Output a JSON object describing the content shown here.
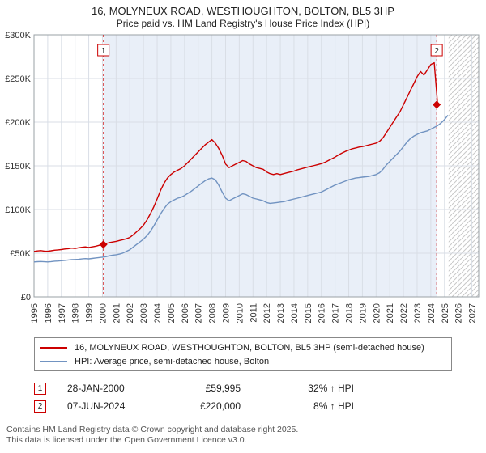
{
  "page": {
    "title": "16, MOLYNEUX ROAD, WESTHOUGHTON, BOLTON, BL5 3HP",
    "subtitle": "Price paid vs. HM Land Registry's House Price Index (HPI)"
  },
  "chart_data": {
    "type": "line",
    "title": "16, MOLYNEUX ROAD, WESTHOUGHTON, BOLTON, BL5 3HP",
    "subtitle": "Price paid vs. HM Land Registry's House Price Index (HPI)",
    "x_axis": {
      "min": 1995,
      "max": 2027.5,
      "tick_years": [
        1995,
        1996,
        1997,
        1998,
        1999,
        2000,
        2001,
        2002,
        2003,
        2004,
        2005,
        2006,
        2007,
        2008,
        2009,
        2010,
        2011,
        2012,
        2013,
        2014,
        2015,
        2016,
        2017,
        2018,
        2019,
        2020,
        2021,
        2022,
        2023,
        2024,
        2025,
        2026,
        2027
      ]
    },
    "y_axis": {
      "min": 0,
      "max": 300000,
      "ticks": [
        {
          "value": 0,
          "label": "£0"
        },
        {
          "value": 50000,
          "label": "£50K"
        },
        {
          "value": 100000,
          "label": "£100K"
        },
        {
          "value": 150000,
          "label": "£150K"
        },
        {
          "value": 200000,
          "label": "£200K"
        },
        {
          "value": 250000,
          "label": "£250K"
        },
        {
          "value": 300000,
          "label": "£300K"
        }
      ]
    },
    "grid": true,
    "legend_position": "bottom",
    "colors": {
      "property": "#cc0000",
      "hpi": "#7193c1",
      "shade": "#e9eff8",
      "grid": "#d9dee6",
      "hatch": "#c8c8c8",
      "border": "#9aa0a6"
    },
    "shaded_region_x": [
      2000.07,
      2024.43
    ],
    "hatched_region_x": [
      2025.3,
      2027.5
    ],
    "series": [
      {
        "name": "16, MOLYNEUX ROAD, WESTHOUGHTON, BOLTON, BL5 3HP (semi-detached house)",
        "color": "#cc0000",
        "x_start": 1995,
        "x_step": 0.25,
        "values_gbp": [
          52000,
          52600,
          53000,
          52400,
          52200,
          52800,
          53400,
          53800,
          54200,
          54800,
          55200,
          55800,
          55400,
          56200,
          56800,
          57200,
          56600,
          57200,
          58000,
          59000,
          59995,
          61000,
          62000,
          62800,
          63500,
          64500,
          65500,
          66500,
          68000,
          71000,
          74500,
          78000,
          82000,
          88000,
          95000,
          103000,
          112000,
          122000,
          130000,
          136000,
          140000,
          143000,
          145000,
          147000,
          150000,
          154000,
          158000,
          162000,
          166000,
          170000,
          174000,
          177000,
          180000,
          176000,
          170000,
          162000,
          152000,
          148000,
          150000,
          152000,
          154000,
          156000,
          155000,
          152000,
          150000,
          148000,
          147000,
          146000,
          143000,
          141000,
          140000,
          141000,
          140000,
          141000,
          142000,
          143000,
          144000,
          145500,
          146500,
          147500,
          148500,
          149500,
          150500,
          151500,
          152500,
          154000,
          156000,
          158000,
          160000,
          162500,
          164500,
          166500,
          168000,
          169500,
          170500,
          171500,
          172000,
          173000,
          174000,
          175000,
          176000,
          178000,
          182000,
          188000,
          194000,
          200000,
          206000,
          212000,
          220000,
          228000,
          236000,
          244000,
          252000,
          258000,
          254000,
          260000,
          266000,
          268000,
          220000
        ]
      },
      {
        "name": "HPI: Average price, semi-detached house, Bolton",
        "color": "#7193c1",
        "x_start": 1995,
        "x_step": 0.25,
        "values_gbp": [
          40000,
          40300,
          40500,
          40200,
          40000,
          40400,
          40800,
          41000,
          41400,
          41800,
          42200,
          42600,
          42800,
          43000,
          43400,
          43800,
          43500,
          44000,
          44500,
          45000,
          45500,
          46000,
          47000,
          47800,
          48200,
          49000,
          50200,
          52000,
          54000,
          57000,
          60000,
          63000,
          66000,
          70000,
          75000,
          81000,
          88000,
          95000,
          101000,
          106000,
          109000,
          111000,
          113000,
          114000,
          116000,
          118500,
          121000,
          124000,
          127000,
          130000,
          133000,
          135000,
          136000,
          134000,
          128000,
          120000,
          113000,
          110000,
          112000,
          114000,
          116000,
          118000,
          117000,
          115000,
          113000,
          112000,
          111000,
          110000,
          108000,
          107000,
          107500,
          108000,
          108500,
          109000,
          110000,
          111000,
          112000,
          113000,
          114000,
          115000,
          116000,
          117000,
          118000,
          119000,
          120000,
          122000,
          124000,
          126000,
          128000,
          129500,
          131000,
          132500,
          134000,
          135000,
          136000,
          136500,
          137000,
          137500,
          138000,
          139000,
          140000,
          142000,
          146000,
          151000,
          155000,
          159000,
          163000,
          167000,
          172000,
          177000,
          181000,
          184000,
          186000,
          188000,
          189000,
          190000,
          192000,
          194000,
          196000,
          199000,
          203000,
          208000
        ]
      }
    ],
    "sales": [
      {
        "label": "1",
        "date": "28-JAN-2000",
        "x": 2000.07,
        "price_gbp": 59995,
        "price_label": "£59,995",
        "vs_hpi": "32% ↑ HPI"
      },
      {
        "label": "2",
        "date": "07-JUN-2024",
        "x": 2024.43,
        "price_gbp": 220000,
        "price_label": "£220,000",
        "vs_hpi": "8% ↑ HPI"
      }
    ]
  },
  "legend": {
    "items": [
      {
        "label": "16, MOLYNEUX ROAD, WESTHOUGHTON, BOLTON, BL5 3HP (semi-detached house)",
        "color": "#cc0000"
      },
      {
        "label": "HPI: Average price, semi-detached house, Bolton",
        "color": "#7193c1"
      }
    ]
  },
  "transactions": [
    {
      "num": "1",
      "date": "28-JAN-2000",
      "price": "£59,995",
      "hpi_change": "32% ↑ HPI"
    },
    {
      "num": "2",
      "date": "07-JUN-2024",
      "price": "£220,000",
      "hpi_change": "8% ↑ HPI"
    }
  ],
  "footer": {
    "line1": "Contains HM Land Registry data © Crown copyright and database right 2025.",
    "line2": "This data is licensed under the Open Government Licence v3.0."
  }
}
